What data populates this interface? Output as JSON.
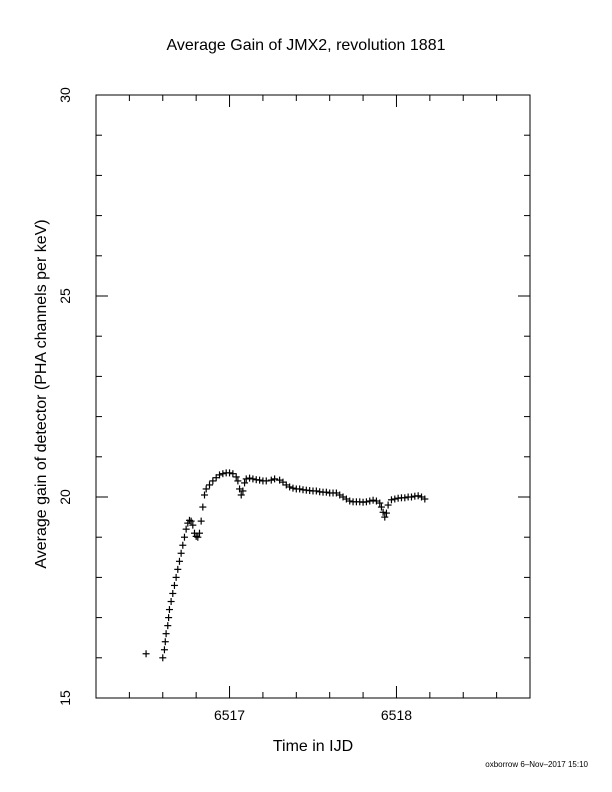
{
  "chart_data": {
    "type": "scatter",
    "title": "Average Gain of JMX2, revolution 1881",
    "xlabel": "Time in IJD",
    "ylabel": "Average gain of detector (PHA channels per keV)",
    "xlim": [
      6516.2,
      6518.8
    ],
    "ylim": [
      15,
      30
    ],
    "x_ticks": [
      6517,
      6518
    ],
    "y_ticks": [
      15,
      20,
      25,
      30
    ],
    "x_minor_step": 0.2,
    "y_minor_step": 1,
    "grid": false,
    "marker": "plus",
    "series": [
      {
        "points": [
          [
            6516.5,
            16.1
          ],
          [
            6516.6,
            16.0
          ],
          [
            6516.61,
            16.2
          ],
          [
            6516.615,
            16.4
          ],
          [
            6516.62,
            16.6
          ],
          [
            6516.63,
            16.8
          ],
          [
            6516.635,
            17.0
          ],
          [
            6516.64,
            17.2
          ],
          [
            6516.65,
            17.4
          ],
          [
            6516.66,
            17.6
          ],
          [
            6516.67,
            17.8
          ],
          [
            6516.68,
            18.0
          ],
          [
            6516.69,
            18.2
          ],
          [
            6516.7,
            18.4
          ],
          [
            6516.71,
            18.6
          ],
          [
            6516.72,
            18.8
          ],
          [
            6516.73,
            19.0
          ],
          [
            6516.74,
            19.2
          ],
          [
            6516.75,
            19.35
          ],
          [
            6516.76,
            19.42
          ],
          [
            6516.77,
            19.4
          ],
          [
            6516.78,
            19.3
          ],
          [
            6516.79,
            19.1
          ],
          [
            6516.8,
            19.02
          ],
          [
            6516.81,
            19.0
          ],
          [
            6516.82,
            19.1
          ],
          [
            6516.83,
            19.4
          ],
          [
            6516.84,
            19.75
          ],
          [
            6516.85,
            20.05
          ],
          [
            6516.86,
            20.2
          ],
          [
            6516.88,
            20.3
          ],
          [
            6516.9,
            20.4
          ],
          [
            6516.92,
            20.48
          ],
          [
            6516.94,
            20.55
          ],
          [
            6516.96,
            20.58
          ],
          [
            6516.98,
            20.6
          ],
          [
            6517.0,
            20.6
          ],
          [
            6517.02,
            20.58
          ],
          [
            6517.04,
            20.5
          ],
          [
            6517.05,
            20.4
          ],
          [
            6517.06,
            20.2
          ],
          [
            6517.07,
            20.05
          ],
          [
            6517.08,
            20.15
          ],
          [
            6517.09,
            20.35
          ],
          [
            6517.1,
            20.45
          ],
          [
            6517.12,
            20.47
          ],
          [
            6517.14,
            20.45
          ],
          [
            6517.16,
            20.43
          ],
          [
            6517.18,
            20.42
          ],
          [
            6517.2,
            20.4
          ],
          [
            6517.22,
            20.4
          ],
          [
            6517.25,
            20.42
          ],
          [
            6517.27,
            20.45
          ],
          [
            6517.3,
            20.42
          ],
          [
            6517.32,
            20.37
          ],
          [
            6517.34,
            20.3
          ],
          [
            6517.36,
            20.25
          ],
          [
            6517.38,
            20.22
          ],
          [
            6517.4,
            20.2
          ],
          [
            6517.42,
            20.2
          ],
          [
            6517.44,
            20.18
          ],
          [
            6517.46,
            20.17
          ],
          [
            6517.48,
            20.16
          ],
          [
            6517.5,
            20.15
          ],
          [
            6517.52,
            20.15
          ],
          [
            6517.54,
            20.13
          ],
          [
            6517.56,
            20.12
          ],
          [
            6517.58,
            20.12
          ],
          [
            6517.6,
            20.1
          ],
          [
            6517.62,
            20.1
          ],
          [
            6517.64,
            20.1
          ],
          [
            6517.66,
            20.05
          ],
          [
            6517.68,
            20.0
          ],
          [
            6517.7,
            19.95
          ],
          [
            6517.72,
            19.9
          ],
          [
            6517.74,
            19.88
          ],
          [
            6517.76,
            19.88
          ],
          [
            6517.78,
            19.88
          ],
          [
            6517.8,
            19.87
          ],
          [
            6517.82,
            19.88
          ],
          [
            6517.84,
            19.9
          ],
          [
            6517.86,
            19.92
          ],
          [
            6517.88,
            19.9
          ],
          [
            6517.9,
            19.85
          ],
          [
            6517.91,
            19.75
          ],
          [
            6517.92,
            19.62
          ],
          [
            6517.93,
            19.5
          ],
          [
            6517.94,
            19.6
          ],
          [
            6517.95,
            19.8
          ],
          [
            6517.97,
            19.93
          ],
          [
            6517.99,
            19.95
          ],
          [
            6518.01,
            19.97
          ],
          [
            6518.03,
            19.98
          ],
          [
            6518.05,
            19.98
          ],
          [
            6518.07,
            20.0
          ],
          [
            6518.09,
            20.0
          ],
          [
            6518.11,
            20.02
          ],
          [
            6518.13,
            20.03
          ],
          [
            6518.15,
            20.0
          ],
          [
            6518.17,
            19.95
          ]
        ]
      }
    ]
  },
  "footer": "oxborrow  6–Nov–2017 15:10"
}
